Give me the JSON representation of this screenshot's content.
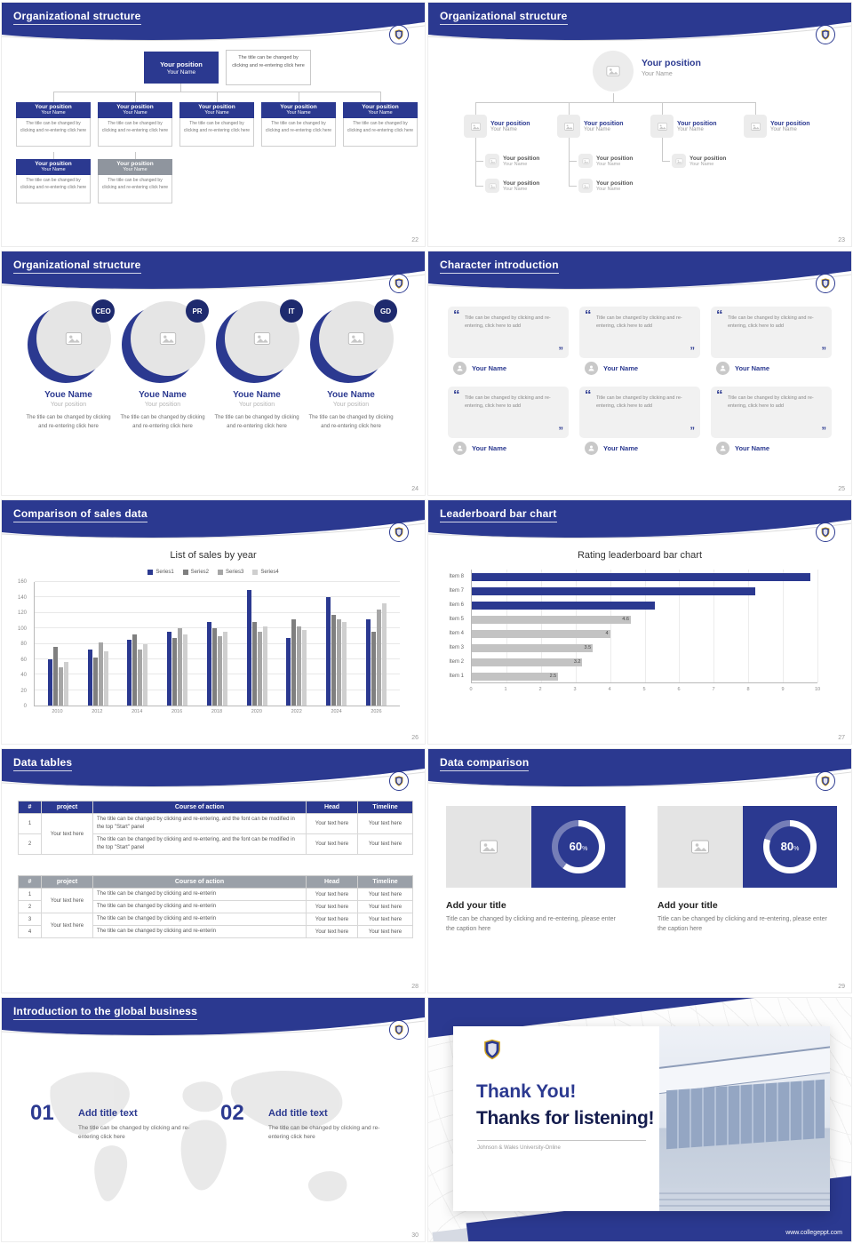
{
  "colors": {
    "primary": "#2b3990",
    "primary_dark": "#1e2a6e",
    "header_gray": "#9aa0a8",
    "placeholder_gray": "#e5e5e5"
  },
  "slides": {
    "org_boxes": {
      "title": "Organizational structure",
      "page": "22",
      "root": {
        "position": "Your position",
        "name": "Your Name"
      },
      "root_note": "The title can be changed by clicking and re-entering click here",
      "node": {
        "position": "Your position",
        "name": "Your Name",
        "note": "The title can be changed by clicking and re-entering click here"
      }
    },
    "org_photos": {
      "title": "Organizational structure",
      "page": "23",
      "root": {
        "position": "Your position",
        "name": "Your Name"
      },
      "node": {
        "position": "Your position",
        "name": "Your Name"
      }
    },
    "org_people": {
      "title": "Organizational structure",
      "page": "24",
      "roles": [
        "CEO",
        "PR",
        "IT",
        "GD"
      ],
      "name": "Youe Name",
      "position": "Your position",
      "note": "The title can be changed by clicking and re-entering click here"
    },
    "characters": {
      "title": "Character introduction",
      "page": "25",
      "quote": "Title can be changed by clicking and re-entering, click here to add",
      "name": "Your Name"
    },
    "sales": {
      "title": "Comparison of sales data",
      "page": "26"
    },
    "leaderboard": {
      "title": "Leaderboard bar chart",
      "page": "27"
    },
    "tables": {
      "title": "Data tables",
      "page": "28",
      "headers": [
        "#",
        "project",
        "Course of action",
        "Head",
        "Timeline"
      ],
      "table1": {
        "project": "Your text here",
        "rows": [
          {
            "num": "1",
            "course": "The title can be changed by clicking and re-entering, and the font can be modified in the top \"Start\" panel",
            "head": "Your text here",
            "timeline": "Your text here"
          },
          {
            "num": "2",
            "course": "The title can be changed by clicking and re-entering, and the font can be modified in the top \"Start\" panel",
            "head": "Your text here",
            "timeline": "Your text here"
          }
        ]
      },
      "table2": {
        "project1": "Your text here",
        "project2": "Your text here",
        "rows": [
          {
            "num": "1",
            "course": "The title can be changed by clicking and re-enterin",
            "head": "Your text here",
            "timeline": "Your text here"
          },
          {
            "num": "2",
            "course": "The title can be changed by clicking and re-enterin",
            "head": "Your text here",
            "timeline": "Your text here"
          },
          {
            "num": "3",
            "course": "The title can be changed by clicking and re-enterin",
            "head": "Your text here",
            "timeline": "Your text here"
          },
          {
            "num": "4",
            "course": "The title can be changed by clicking and re-enterin",
            "head": "Your text here",
            "timeline": "Your text here"
          }
        ]
      }
    },
    "comparison": {
      "title": "Data comparison",
      "page": "29",
      "panels": [
        {
          "percent": 60,
          "percent_label": "60",
          "suffix": "%",
          "heading": "Add your title",
          "caption": "Title can be changed by clicking and re-entering, please enter the caption here"
        },
        {
          "percent": 80,
          "percent_label": "80",
          "suffix": "%",
          "heading": "Add your title",
          "caption": "Title can be changed by clicking and re-entering, please enter the caption here"
        }
      ]
    },
    "global_business": {
      "title": "Introduction to the global business",
      "page": "30",
      "items": [
        {
          "num": "01",
          "title": "Add title text",
          "caption": "The title can be changed by clicking and re-entering click here"
        },
        {
          "num": "02",
          "title": "Add title text",
          "caption": "The title can be changed by clicking and re-entering click here"
        }
      ]
    },
    "thanks": {
      "line1": "Thank You!",
      "line2": "Thanks for listening!",
      "subtitle": "Johnson & Wales University-Online",
      "url": "www.collegeppt.com"
    }
  },
  "chart_data": [
    {
      "type": "bar",
      "title": "List of sales by year",
      "categories": [
        "2010",
        "2012",
        "2014",
        "2016",
        "2018",
        "2020",
        "2022",
        "2024",
        "2026"
      ],
      "series": [
        {
          "name": "Series1",
          "values": [
            60,
            72,
            85,
            95,
            108,
            150,
            88,
            140,
            112
          ]
        },
        {
          "name": "Series2",
          "values": [
            76,
            62,
            92,
            88,
            100,
            108,
            112,
            118,
            96
          ]
        },
        {
          "name": "Series3",
          "values": [
            50,
            82,
            72,
            100,
            90,
            96,
            102,
            112,
            124
          ]
        },
        {
          "name": "Series4",
          "values": [
            56,
            70,
            80,
            92,
            96,
            102,
            98,
            108,
            132
          ]
        }
      ],
      "colors": [
        "#2b3990",
        "#7f7f7f",
        "#a6a6a6",
        "#cfcfcf"
      ],
      "ylim": [
        0,
        160
      ],
      "yticks": [
        0,
        20,
        40,
        60,
        80,
        100,
        120,
        140,
        160
      ],
      "legend_position": "top",
      "grid": true
    },
    {
      "type": "bar-horizontal",
      "title": "Rating leaderboard bar chart",
      "categories": [
        "Item 1",
        "Item 2",
        "Item 3",
        "Item 4",
        "Item 5",
        "Item 6",
        "Item 7",
        "Item 8"
      ],
      "values": [
        2.5,
        3.2,
        3.5,
        4,
        4.6,
        5.3,
        8.2,
        9.8
      ],
      "shown_labels": [
        "2.5",
        "3.2",
        "3.5",
        "4",
        "4.6",
        "",
        "",
        ""
      ],
      "xlim": [
        0,
        10
      ],
      "xticks": [
        0,
        1,
        2,
        3,
        4,
        5,
        6,
        7,
        8,
        9,
        10
      ],
      "highlight_color": "#2b3990",
      "base_color": "#c3c3c3",
      "grid": true
    }
  ]
}
